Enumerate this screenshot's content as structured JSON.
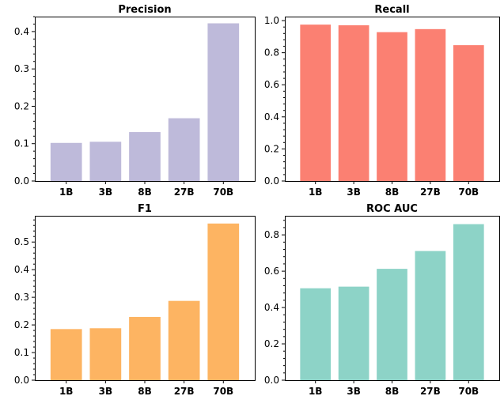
{
  "chart_data": [
    {
      "type": "bar",
      "title": "Precision",
      "categories": [
        "1B",
        "3B",
        "8B",
        "27B",
        "70B"
      ],
      "values": [
        0.102,
        0.105,
        0.131,
        0.168,
        0.422
      ],
      "ylim": [
        0,
        0.44
      ],
      "yticks": [
        "0.0",
        "0.1",
        "0.2",
        "0.3",
        "0.4"
      ],
      "ytick_values": [
        0,
        0.1,
        0.2,
        0.3,
        0.4
      ],
      "color": "#bebada",
      "grid": false
    },
    {
      "type": "bar",
      "title": "Recall",
      "categories": [
        "1B",
        "3B",
        "8B",
        "27B",
        "70B"
      ],
      "values": [
        0.975,
        0.971,
        0.928,
        0.947,
        0.847
      ],
      "ylim": [
        0,
        1.025
      ],
      "yticks": [
        "0.0",
        "0.2",
        "0.4",
        "0.6",
        "0.8",
        "1.0"
      ],
      "ytick_values": [
        0,
        0.2,
        0.4,
        0.6,
        0.8,
        1.0
      ],
      "color": "#fb8072",
      "grid": false
    },
    {
      "type": "bar",
      "title": "F1",
      "categories": [
        "1B",
        "3B",
        "8B",
        "27B",
        "70B"
      ],
      "values": [
        0.185,
        0.188,
        0.229,
        0.287,
        0.567
      ],
      "ylim": [
        0,
        0.595
      ],
      "yticks": [
        "0.0",
        "0.1",
        "0.2",
        "0.3",
        "0.4",
        "0.5"
      ],
      "ytick_values": [
        0,
        0.1,
        0.2,
        0.3,
        0.4,
        0.5
      ],
      "color": "#fdb462",
      "grid": false
    },
    {
      "type": "bar",
      "title": "ROC AUC",
      "categories": [
        "1B",
        "3B",
        "8B",
        "27B",
        "70B"
      ],
      "values": [
        0.506,
        0.515,
        0.613,
        0.711,
        0.859
      ],
      "ylim": [
        0,
        0.905
      ],
      "yticks": [
        "0.0",
        "0.2",
        "0.4",
        "0.6",
        "0.8"
      ],
      "ytick_values": [
        0,
        0.2,
        0.4,
        0.6,
        0.8
      ],
      "color": "#8dd3c7",
      "grid": false
    }
  ]
}
